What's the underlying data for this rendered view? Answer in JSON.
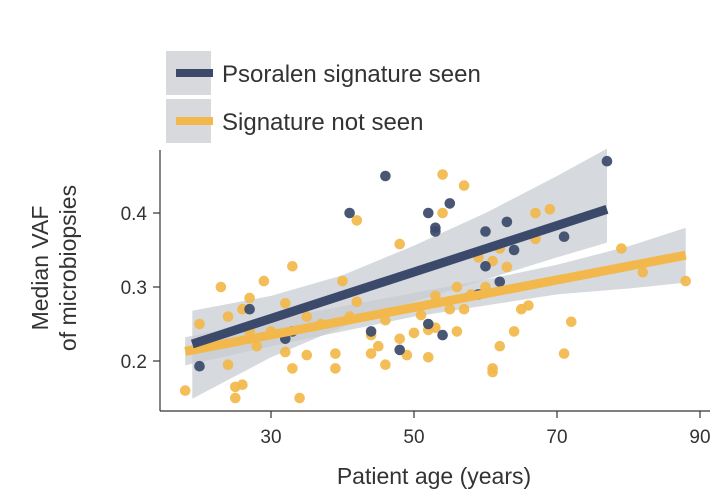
{
  "chart_data": {
    "type": "scatter",
    "xlabel": "Patient age (years)",
    "ylabel_lines": [
      "Median VAF",
      "of microbiopsies"
    ],
    "xlim": [
      16,
      91
    ],
    "ylim": [
      0.13,
      0.5
    ],
    "xticks": [
      30,
      50,
      70,
      90
    ],
    "yticks": [
      0.2,
      0.3,
      0.4
    ],
    "xtick_labels": [
      "30",
      "50",
      "70",
      "90"
    ],
    "ytick_labels": [
      "0.2",
      "0.3",
      "0.4"
    ],
    "legend_position": "top-left",
    "colors": {
      "seen": "#3b4a6b",
      "not_seen": "#f2b84b",
      "band": "#c8ccd2"
    },
    "series": [
      {
        "name": "Psoralen signature seen",
        "key": "seen",
        "points": [
          [
            20,
            0.193
          ],
          [
            20,
            0.225
          ],
          [
            27,
            0.27
          ],
          [
            32,
            0.23
          ],
          [
            33,
            0.24
          ],
          [
            41,
            0.4
          ],
          [
            44,
            0.24
          ],
          [
            46,
            0.45
          ],
          [
            48,
            0.215
          ],
          [
            52,
            0.4
          ],
          [
            52,
            0.25
          ],
          [
            53,
            0.38
          ],
          [
            53,
            0.375
          ],
          [
            54,
            0.235
          ],
          [
            55,
            0.413
          ],
          [
            59,
            0.29
          ],
          [
            60,
            0.375
          ],
          [
            60,
            0.328
          ],
          [
            62,
            0.307
          ],
          [
            63,
            0.388
          ],
          [
            64,
            0.35
          ],
          [
            71,
            0.368
          ],
          [
            77,
            0.47
          ]
        ],
        "fit": {
          "x": [
            19,
            77
          ],
          "y": [
            0.223,
            0.405
          ]
        },
        "ci_upper": [
          [
            19,
            0.268
          ],
          [
            30,
            0.288
          ],
          [
            40,
            0.316
          ],
          [
            50,
            0.356
          ],
          [
            60,
            0.4
          ],
          [
            70,
            0.45
          ],
          [
            77,
            0.487
          ]
        ],
        "ci_lower": [
          [
            19,
            0.149
          ],
          [
            30,
            0.205
          ],
          [
            40,
            0.246
          ],
          [
            50,
            0.28
          ],
          [
            60,
            0.31
          ],
          [
            70,
            0.34
          ],
          [
            77,
            0.36
          ]
        ]
      },
      {
        "name": "Signature not seen",
        "key": "not_seen",
        "points": [
          [
            18,
            0.16
          ],
          [
            20,
            0.25
          ],
          [
            23,
            0.3
          ],
          [
            24,
            0.195
          ],
          [
            24,
            0.26
          ],
          [
            25,
            0.165
          ],
          [
            25,
            0.15
          ],
          [
            26,
            0.168
          ],
          [
            26,
            0.27
          ],
          [
            27,
            0.285
          ],
          [
            27,
            0.24
          ],
          [
            28,
            0.22
          ],
          [
            29,
            0.308
          ],
          [
            30,
            0.24
          ],
          [
            32,
            0.278
          ],
          [
            32,
            0.212
          ],
          [
            33,
            0.328
          ],
          [
            33,
            0.19
          ],
          [
            34,
            0.15
          ],
          [
            35,
            0.208
          ],
          [
            35,
            0.26
          ],
          [
            37,
            0.25
          ],
          [
            39,
            0.21
          ],
          [
            39,
            0.19
          ],
          [
            40,
            0.308
          ],
          [
            41,
            0.26
          ],
          [
            42,
            0.28
          ],
          [
            42,
            0.39
          ],
          [
            44,
            0.21
          ],
          [
            44,
            0.235
          ],
          [
            45,
            0.22
          ],
          [
            46,
            0.195
          ],
          [
            46,
            0.255
          ],
          [
            48,
            0.358
          ],
          [
            48,
            0.23
          ],
          [
            49,
            0.208
          ],
          [
            50,
            0.238
          ],
          [
            51,
            0.262
          ],
          [
            52,
            0.205
          ],
          [
            52,
            0.242
          ],
          [
            53,
            0.288
          ],
          [
            53,
            0.245
          ],
          [
            54,
            0.452
          ],
          [
            54,
            0.4
          ],
          [
            55,
            0.27
          ],
          [
            56,
            0.24
          ],
          [
            56,
            0.3
          ],
          [
            57,
            0.437
          ],
          [
            57,
            0.27
          ],
          [
            58,
            0.29
          ],
          [
            59,
            0.34
          ],
          [
            60,
            0.3
          ],
          [
            61,
            0.19
          ],
          [
            61,
            0.185
          ],
          [
            61,
            0.335
          ],
          [
            62,
            0.22
          ],
          [
            62,
            0.352
          ],
          [
            63,
            0.327
          ],
          [
            64,
            0.24
          ],
          [
            65,
            0.27
          ],
          [
            66,
            0.275
          ],
          [
            67,
            0.4
          ],
          [
            67,
            0.365
          ],
          [
            69,
            0.405
          ],
          [
            71,
            0.21
          ],
          [
            72,
            0.253
          ],
          [
            79,
            0.352
          ],
          [
            82,
            0.32
          ],
          [
            88,
            0.308
          ]
        ],
        "fit": {
          "x": [
            18,
            88
          ],
          "y": [
            0.213,
            0.343
          ]
        },
        "ci_upper": [
          [
            18,
            0.232
          ],
          [
            30,
            0.255
          ],
          [
            40,
            0.274
          ],
          [
            50,
            0.292
          ],
          [
            60,
            0.31
          ],
          [
            70,
            0.33
          ],
          [
            80,
            0.355
          ],
          [
            88,
            0.38
          ]
        ],
        "ci_lower": [
          [
            18,
            0.194
          ],
          [
            30,
            0.22
          ],
          [
            40,
            0.24
          ],
          [
            50,
            0.26
          ],
          [
            60,
            0.275
          ],
          [
            70,
            0.29
          ],
          [
            80,
            0.298
          ],
          [
            88,
            0.306
          ]
        ]
      }
    ]
  }
}
